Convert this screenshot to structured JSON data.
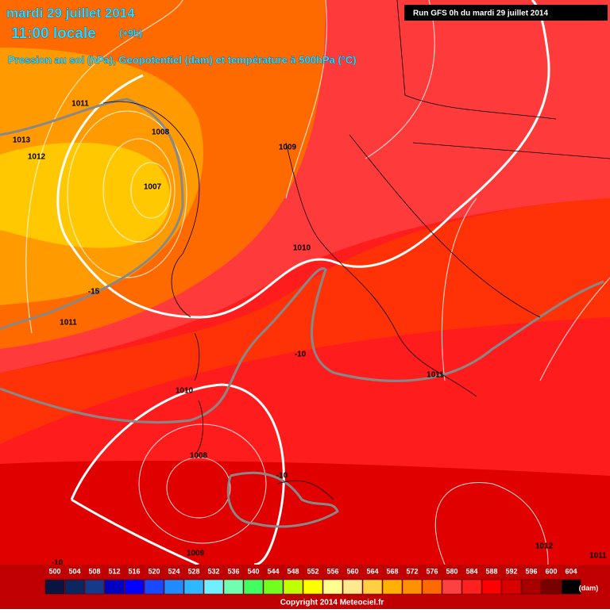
{
  "header": {
    "date": "mardi 29 juillet 2014",
    "time": "11:00 locale",
    "offset": "(+9h)",
    "subtitle": "Pression au sol (hPa), Geopotentiel (dam) et température à 500hPa (°C)",
    "run": "Run GFS 0h du mardi 29 juillet 2014"
  },
  "map": {
    "labels": [
      "1011",
      "1013",
      "1012",
      "1008",
      "1007",
      "1009",
      "1010",
      "-15",
      "1011",
      "-10",
      "1011",
      "1010",
      "1008",
      "-10",
      "1009",
      "1012",
      "1011",
      "-10"
    ]
  },
  "legend": {
    "values": [
      500,
      504,
      508,
      512,
      516,
      520,
      524,
      528,
      532,
      536,
      540,
      544,
      548,
      552,
      556,
      560,
      564,
      568,
      572,
      576,
      580,
      584,
      588,
      592,
      596,
      600,
      604
    ],
    "colors": [
      "#0a1440",
      "#0c2660",
      "#163a8a",
      "#0000c0",
      "#0000ff",
      "#1848ff",
      "#1e8cff",
      "#30b8ff",
      "#70f0ff",
      "#70ffb0",
      "#40ff60",
      "#70ff20",
      "#c0ff00",
      "#ffff00",
      "#ffff90",
      "#ffe890",
      "#ffd040",
      "#ffb000",
      "#ff9000",
      "#ff6a00",
      "#ff4040",
      "#ff2020",
      "#ff0000",
      "#d80000",
      "#a80000",
      "#780000",
      "#000000"
    ],
    "unit": "(dam)"
  },
  "footer": {
    "copyright": "Copyright 2014 Meteociel.fr"
  }
}
